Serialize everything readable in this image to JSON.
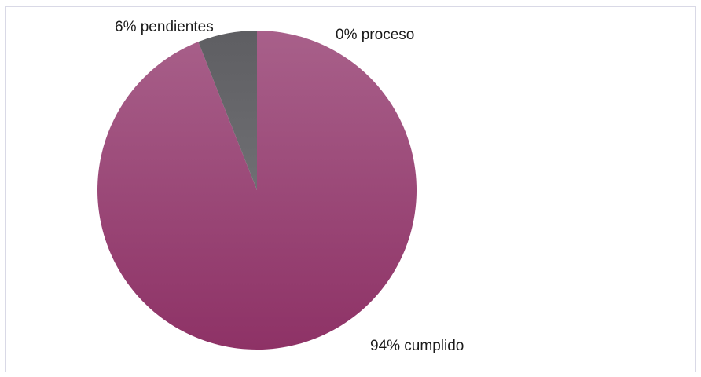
{
  "chart_data": {
    "type": "pie",
    "slices": [
      {
        "category": "cumplido",
        "value": 94,
        "label": "94% cumplido",
        "color": "#9b3d6e"
      },
      {
        "category": "pendientes",
        "value": 6,
        "label": "6% pendientes",
        "color": "#6a6a6e"
      },
      {
        "category": "proceso",
        "value": 0,
        "label": "0% proceso",
        "color": "#4472c4"
      }
    ],
    "start_angle_deg": 0,
    "direction": "clockwise",
    "legend": "none"
  }
}
